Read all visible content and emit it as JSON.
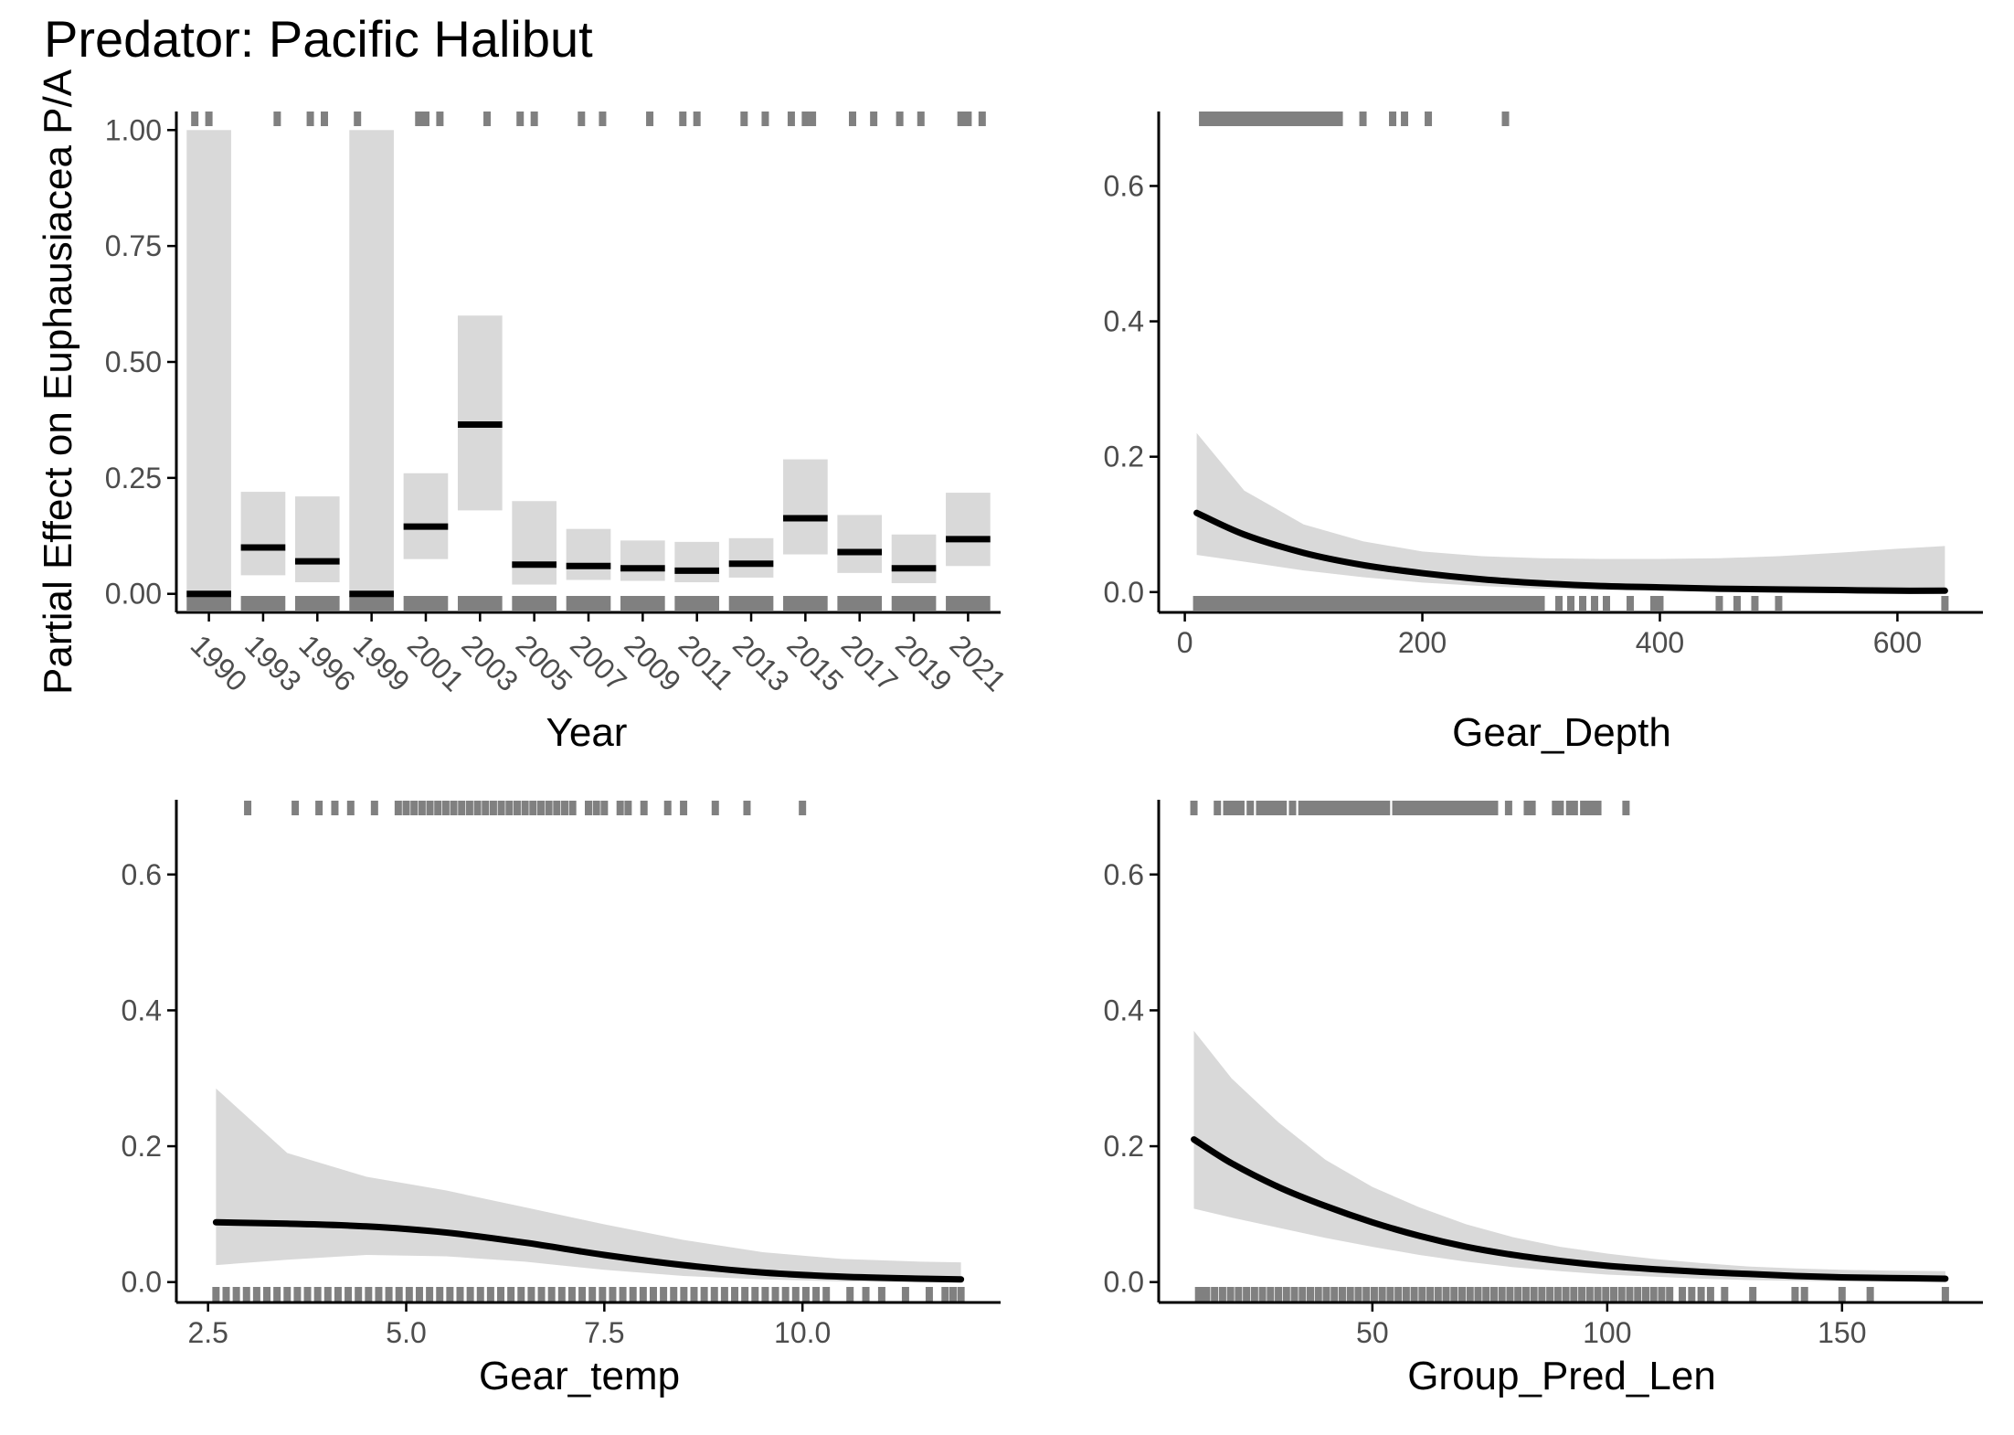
{
  "figure": {
    "title": "Predator: Pacific Halibut",
    "ylabel": "Partial Effect on Euphausiacea P/A",
    "colors": {
      "ribbon": "#d9d9d9",
      "line": "#000000",
      "rug": "#808080",
      "axis": "#000000",
      "tick_text": "#4d4d4d"
    }
  },
  "chart_data": [
    {
      "type": "bar",
      "panel": "Year",
      "xlabel": "Year",
      "ylim": [
        -0.04,
        1.04
      ],
      "yticks": [
        "0.00",
        "0.25",
        "0.50",
        "0.75",
        "1.00"
      ],
      "ytick_values": [
        0,
        0.25,
        0.5,
        0.75,
        1.0
      ],
      "tick_labels": [
        "1990",
        "1993",
        "1996",
        "1999",
        "2001",
        "2003",
        "2005",
        "2007",
        "2009",
        "2011",
        "2013",
        "2015",
        "2017",
        "2019",
        "2021"
      ],
      "categories": [
        "1990",
        "1993",
        "1996",
        "1999",
        "2001",
        "2003",
        "2005",
        "2007",
        "2009",
        "2011",
        "2013",
        "2015",
        "2017",
        "2019",
        "2021"
      ],
      "values": [
        0.0,
        0.1,
        0.07,
        0.0,
        0.145,
        0.365,
        0.063,
        0.06,
        0.055,
        0.05,
        0.065,
        0.163,
        0.09,
        0.055,
        0.118
      ],
      "lower": [
        0.0,
        0.04,
        0.025,
        0.0,
        0.075,
        0.18,
        0.02,
        0.03,
        0.028,
        0.025,
        0.035,
        0.085,
        0.045,
        0.023,
        0.06
      ],
      "upper": [
        1.0,
        0.22,
        0.21,
        1.0,
        0.26,
        0.6,
        0.2,
        0.14,
        0.115,
        0.112,
        0.12,
        0.29,
        0.17,
        0.128,
        0.218
      ],
      "rug_top": [
        0,
        0,
        1,
        2,
        2,
        3,
        4,
        4,
        4,
        5,
        6,
        6,
        7,
        7,
        8,
        9,
        9,
        10,
        10,
        11,
        11,
        11,
        12,
        12,
        13,
        13,
        14,
        14,
        14
      ],
      "rug_bottom": [
        0,
        1,
        2,
        3,
        4,
        5,
        6,
        7,
        8,
        9,
        10,
        11,
        12,
        13,
        14
      ]
    },
    {
      "type": "line",
      "panel": "Gear_Depth",
      "xlabel": "Gear_Depth",
      "xlim": [
        -22,
        672
      ],
      "ylim": [
        -0.03,
        0.71
      ],
      "xticks": [
        "0",
        "200",
        "400",
        "600"
      ],
      "xtick_values": [
        0,
        200,
        400,
        600
      ],
      "yticks": [
        "0.0",
        "0.2",
        "0.4",
        "0.6"
      ],
      "ytick_values": [
        0,
        0.2,
        0.4,
        0.6
      ],
      "x": [
        10,
        50,
        100,
        150,
        200,
        250,
        300,
        350,
        400,
        450,
        500,
        550,
        600,
        640
      ],
      "y": [
        0.117,
        0.085,
        0.058,
        0.04,
        0.028,
        0.019,
        0.013,
        0.009,
        0.007,
        0.005,
        0.004,
        0.003,
        0.002,
        0.002
      ],
      "lower": [
        0.055,
        0.045,
        0.032,
        0.022,
        0.014,
        0.009,
        0.005,
        0.003,
        0.002,
        0.001,
        0.001,
        0.0,
        0.0,
        0.0
      ],
      "upper": [
        0.235,
        0.15,
        0.1,
        0.075,
        0.06,
        0.053,
        0.05,
        0.049,
        0.049,
        0.05,
        0.053,
        0.058,
        0.064,
        0.068
      ],
      "rug_top": [
        15,
        20,
        25,
        30,
        35,
        40,
        45,
        50,
        55,
        60,
        65,
        70,
        75,
        80,
        85,
        90,
        95,
        100,
        105,
        110,
        115,
        120,
        125,
        130,
        150,
        175,
        185,
        205,
        270
      ],
      "rug_bottom_range": [
        10,
        300
      ],
      "rug_bottom": [
        315,
        325,
        335,
        345,
        355,
        375,
        395,
        400,
        450,
        465,
        480,
        500,
        640
      ]
    },
    {
      "type": "line",
      "panel": "Gear_temp",
      "xlabel": "Gear_temp",
      "xlim": [
        2.1,
        12.5
      ],
      "ylim": [
        -0.03,
        0.71
      ],
      "xticks": [
        "2.5",
        "5.0",
        "7.5",
        "10.0"
      ],
      "xtick_values": [
        2.5,
        5.0,
        7.5,
        10.0
      ],
      "yticks": [
        "0.0",
        "0.2",
        "0.4",
        "0.6"
      ],
      "ytick_values": [
        0,
        0.2,
        0.4,
        0.6
      ],
      "x": [
        2.6,
        3.5,
        4.5,
        5.5,
        6.5,
        7.5,
        8.5,
        9.5,
        10.5,
        11.5,
        12.0
      ],
      "y": [
        0.088,
        0.086,
        0.082,
        0.073,
        0.058,
        0.04,
        0.025,
        0.014,
        0.008,
        0.005,
        0.004
      ],
      "lower": [
        0.025,
        0.033,
        0.04,
        0.038,
        0.03,
        0.018,
        0.009,
        0.004,
        0.001,
        0.0,
        0.0
      ],
      "upper": [
        0.285,
        0.19,
        0.155,
        0.135,
        0.11,
        0.085,
        0.062,
        0.044,
        0.034,
        0.03,
        0.029
      ],
      "rug_top": [
        3.0,
        3.6,
        3.9,
        4.1,
        4.3,
        4.6,
        4.9,
        5.0,
        5.1,
        5.2,
        5.3,
        5.4,
        5.5,
        5.6,
        5.7,
        5.8,
        5.9,
        6.0,
        6.1,
        6.2,
        6.3,
        6.4,
        6.5,
        6.6,
        6.7,
        6.8,
        6.9,
        7.0,
        7.1,
        7.3,
        7.4,
        7.5,
        7.7,
        7.8,
        8.0,
        8.3,
        8.5,
        8.9,
        9.3,
        10.0
      ],
      "rug_bottom_range": [
        2.6,
        10.3
      ],
      "rug_bottom": [
        10.6,
        10.8,
        11.0,
        11.3,
        11.6,
        11.8,
        11.9,
        12.0
      ]
    },
    {
      "type": "line",
      "panel": "Group_Pred_Len",
      "xlabel": "Group_Pred_Len",
      "xlim": [
        4.5,
        180
      ],
      "ylim": [
        -0.03,
        0.71
      ],
      "xticks": [
        "50",
        "100",
        "150"
      ],
      "xtick_values": [
        50,
        100,
        150
      ],
      "yticks": [
        "0.0",
        "0.2",
        "0.4",
        "0.6"
      ],
      "ytick_values": [
        0,
        0.2,
        0.4,
        0.6
      ],
      "x": [
        12,
        20,
        30,
        40,
        50,
        60,
        70,
        80,
        90,
        100,
        110,
        120,
        130,
        140,
        150,
        160,
        172
      ],
      "y": [
        0.21,
        0.175,
        0.14,
        0.112,
        0.088,
        0.068,
        0.052,
        0.04,
        0.031,
        0.024,
        0.019,
        0.015,
        0.012,
        0.009,
        0.007,
        0.006,
        0.005
      ],
      "lower": [
        0.108,
        0.095,
        0.08,
        0.065,
        0.052,
        0.04,
        0.03,
        0.022,
        0.016,
        0.011,
        0.008,
        0.005,
        0.003,
        0.002,
        0.001,
        0.001,
        0.0
      ],
      "upper": [
        0.37,
        0.3,
        0.235,
        0.18,
        0.14,
        0.11,
        0.085,
        0.066,
        0.052,
        0.042,
        0.034,
        0.028,
        0.023,
        0.02,
        0.018,
        0.017,
        0.016
      ],
      "rug_top": [
        12,
        17,
        19,
        20,
        21,
        22,
        24,
        26,
        27,
        28,
        29,
        30,
        31,
        33,
        35,
        36,
        37,
        38,
        39,
        40,
        41,
        42,
        43,
        44,
        45,
        46,
        47,
        48,
        49,
        50,
        51,
        52,
        53,
        55,
        56,
        57,
        58,
        59,
        60,
        61,
        62,
        63,
        64,
        65,
        66,
        67,
        68,
        69,
        70,
        71,
        72,
        73,
        74,
        75,
        76,
        79,
        83,
        84,
        89,
        90,
        92,
        93,
        95,
        96,
        97,
        98,
        104
      ],
      "rug_bottom_range": [
        13,
        115
      ],
      "rug_bottom": [
        14,
        116,
        118,
        120,
        122,
        125,
        131,
        140,
        142,
        150,
        156,
        172
      ]
    }
  ]
}
